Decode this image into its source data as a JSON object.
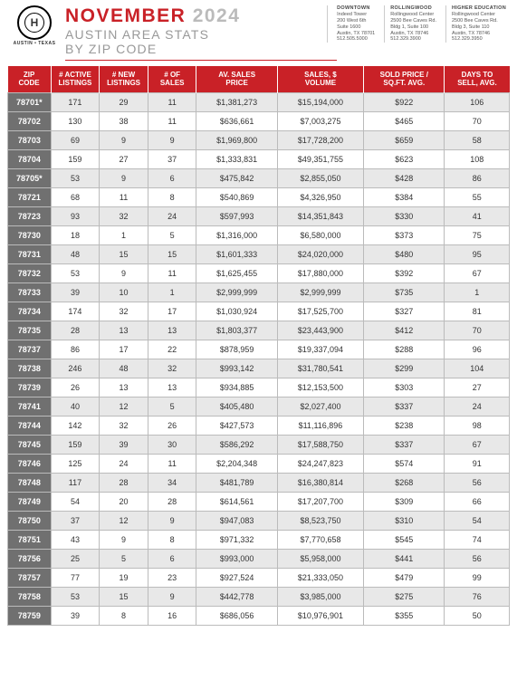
{
  "header": {
    "logo_letter": "H",
    "logo_top": "HERITAGE",
    "logo_sub": "AUSTIN • TEXAS",
    "month": "NOVEMBER",
    "year": "2024",
    "sub1": "AUSTIN AREA STATS",
    "sub2": "BY ZIP CODE"
  },
  "offices": [
    {
      "name": "DOWNTOWN",
      "l1": "Indeed Tower",
      "l2": "200 West 6th",
      "l3": "Suite 1600",
      "l4": "Austin, TX 78701",
      "l5": "512.505.5000"
    },
    {
      "name": "ROLLINGWOOD",
      "l1": "Rollingwood Center",
      "l2": "2500 Bee Caves Rd.",
      "l3": "Bldg 1, Suite 100",
      "l4": "Austin, TX 78746",
      "l5": "512.329.3900"
    },
    {
      "name": "HIGHER EDUCATION",
      "l1": "Rollingwood Center",
      "l2": "2500 Bee Caves Rd.",
      "l3": "Bldg 3, Suite 110",
      "l4": "Austin, TX 78746",
      "l5": "512.329.3950"
    }
  ],
  "columns": [
    "ZIP CODE",
    "# ACTIVE LISTINGS",
    "# NEW LISTINGS",
    "# OF SALES",
    "AV. SALES PRICE",
    "SALES, $ VOLUME",
    "SOLD PRICE / SQ.FT. AVG.",
    "DAYS TO SELL, AVG."
  ],
  "rows": [
    [
      "78701*",
      "171",
      "29",
      "11",
      "$1,381,273",
      "$15,194,000",
      "$922",
      "106"
    ],
    [
      "78702",
      "130",
      "38",
      "11",
      "$636,661",
      "$7,003,275",
      "$465",
      "70"
    ],
    [
      "78703",
      "69",
      "9",
      "9",
      "$1,969,800",
      "$17,728,200",
      "$659",
      "58"
    ],
    [
      "78704",
      "159",
      "27",
      "37",
      "$1,333,831",
      "$49,351,755",
      "$623",
      "108"
    ],
    [
      "78705*",
      "53",
      "9",
      "6",
      "$475,842",
      "$2,855,050",
      "$428",
      "86"
    ],
    [
      "78721",
      "68",
      "11",
      "8",
      "$540,869",
      "$4,326,950",
      "$384",
      "55"
    ],
    [
      "78723",
      "93",
      "32",
      "24",
      "$597,993",
      "$14,351,843",
      "$330",
      "41"
    ],
    [
      "78730",
      "18",
      "1",
      "5",
      "$1,316,000",
      "$6,580,000",
      "$373",
      "75"
    ],
    [
      "78731",
      "48",
      "15",
      "15",
      "$1,601,333",
      "$24,020,000",
      "$480",
      "95"
    ],
    [
      "78732",
      "53",
      "9",
      "11",
      "$1,625,455",
      "$17,880,000",
      "$392",
      "67"
    ],
    [
      "78733",
      "39",
      "10",
      "1",
      "$2,999,999",
      "$2,999,999",
      "$735",
      "1"
    ],
    [
      "78734",
      "174",
      "32",
      "17",
      "$1,030,924",
      "$17,525,700",
      "$327",
      "81"
    ],
    [
      "78735",
      "28",
      "13",
      "13",
      "$1,803,377",
      "$23,443,900",
      "$412",
      "70"
    ],
    [
      "78737",
      "86",
      "17",
      "22",
      "$878,959",
      "$19,337,094",
      "$288",
      "96"
    ],
    [
      "78738",
      "246",
      "48",
      "32",
      "$993,142",
      "$31,780,541",
      "$299",
      "104"
    ],
    [
      "78739",
      "26",
      "13",
      "13",
      "$934,885",
      "$12,153,500",
      "$303",
      "27"
    ],
    [
      "78741",
      "40",
      "12",
      "5",
      "$405,480",
      "$2,027,400",
      "$337",
      "24"
    ],
    [
      "78744",
      "142",
      "32",
      "26",
      "$427,573",
      "$11,116,896",
      "$238",
      "98"
    ],
    [
      "78745",
      "159",
      "39",
      "30",
      "$586,292",
      "$17,588,750",
      "$337",
      "67"
    ],
    [
      "78746",
      "125",
      "24",
      "11",
      "$2,204,348",
      "$24,247,823",
      "$574",
      "91"
    ],
    [
      "78748",
      "117",
      "28",
      "34",
      "$481,789",
      "$16,380,814",
      "$268",
      "56"
    ],
    [
      "78749",
      "54",
      "20",
      "28",
      "$614,561",
      "$17,207,700",
      "$309",
      "66"
    ],
    [
      "78750",
      "37",
      "12",
      "9",
      "$947,083",
      "$8,523,750",
      "$310",
      "54"
    ],
    [
      "78751",
      "43",
      "9",
      "8",
      "$971,332",
      "$7,770,658",
      "$545",
      "74"
    ],
    [
      "78756",
      "25",
      "5",
      "6",
      "$993,000",
      "$5,958,000",
      "$441",
      "56"
    ],
    [
      "78757",
      "77",
      "19",
      "23",
      "$927,524",
      "$21,333,050",
      "$479",
      "99"
    ],
    [
      "78758",
      "53",
      "15",
      "9",
      "$442,778",
      "$3,985,000",
      "$275",
      "76"
    ],
    [
      "78759",
      "39",
      "8",
      "16",
      "$686,056",
      "$10,976,901",
      "$355",
      "50"
    ]
  ],
  "styles": {
    "header_bg": "#c92127",
    "row_odd_bg": "#e8e8e8",
    "row_even_bg": "#ffffff",
    "zip_col_bg": "#707070",
    "border_color": "#bbbbbb"
  }
}
